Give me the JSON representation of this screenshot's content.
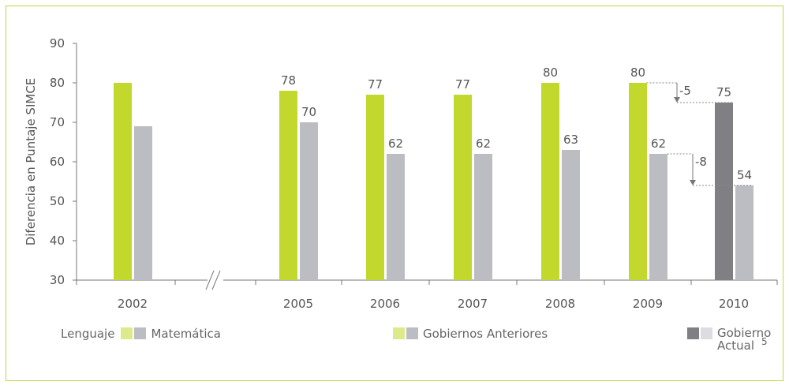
{
  "chart_data": {
    "type": "bar",
    "ylabel": "Diferencia en Puntaje SIMCE",
    "ylim": [
      30,
      90
    ],
    "yticks": [
      30,
      40,
      50,
      60,
      70,
      80,
      90
    ],
    "categories": [
      "2002",
      "2005",
      "2006",
      "2007",
      "2008",
      "2009",
      "2010"
    ],
    "axis_break_between": [
      "2002",
      "2005"
    ],
    "series": [
      {
        "name": "Lenguaje",
        "values": [
          80,
          78,
          77,
          77,
          80,
          80,
          75
        ],
        "labels": [
          "",
          "78",
          "77",
          "77",
          "80",
          "80",
          "75"
        ]
      },
      {
        "name": "Matemática",
        "values": [
          69,
          70,
          62,
          62,
          63,
          62,
          54
        ],
        "labels": [
          "",
          "70",
          "62",
          "62",
          "63",
          "62",
          "54"
        ]
      }
    ],
    "annotations": [
      {
        "series": "Lenguaje",
        "from": "2009",
        "to": "2010",
        "text": "-5"
      },
      {
        "series": "Matemática",
        "from": "2009",
        "to": "2010",
        "text": "-8"
      }
    ],
    "colors": {
      "lenguaje_previous": "#c3d82c",
      "matematica": "#bcbdc2",
      "lenguaje_current": "#7f7f84",
      "legend_light_green": "#dde98a",
      "legend_light_gray": "#dcdde0",
      "frame": "#c3d645"
    }
  },
  "legend": {
    "lenguaje": "Lenguaje",
    "matematica": "Matemática",
    "gobiernos_anteriores": "Gobiernos Anteriores",
    "gobierno_actual": "Gobierno Actual",
    "footnote_mark": "5"
  }
}
